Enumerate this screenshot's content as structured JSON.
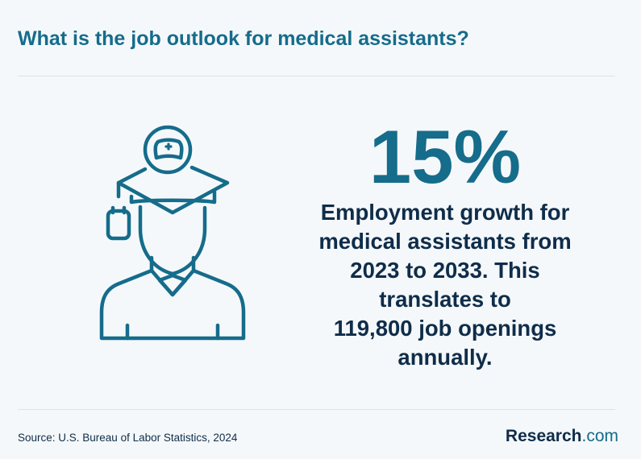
{
  "header": {
    "title": "What is the job outlook for medical assistants?"
  },
  "main": {
    "stat_value": "15%",
    "description_lines": [
      "Employment growth for",
      "medical assistants from",
      "2023 to 2033. This",
      "translates to",
      "119,800 job openings",
      "annually."
    ],
    "illustration_icon": "graduate-nurse-icon"
  },
  "footer": {
    "source": "Source: U.S. Bureau of Labor Statistics, 2024",
    "logo_name": "Research",
    "logo_suffix": ".com"
  },
  "colors": {
    "accent": "#156c8b",
    "text_dark": "#0f2d4a",
    "background": "#f5f8fa"
  }
}
